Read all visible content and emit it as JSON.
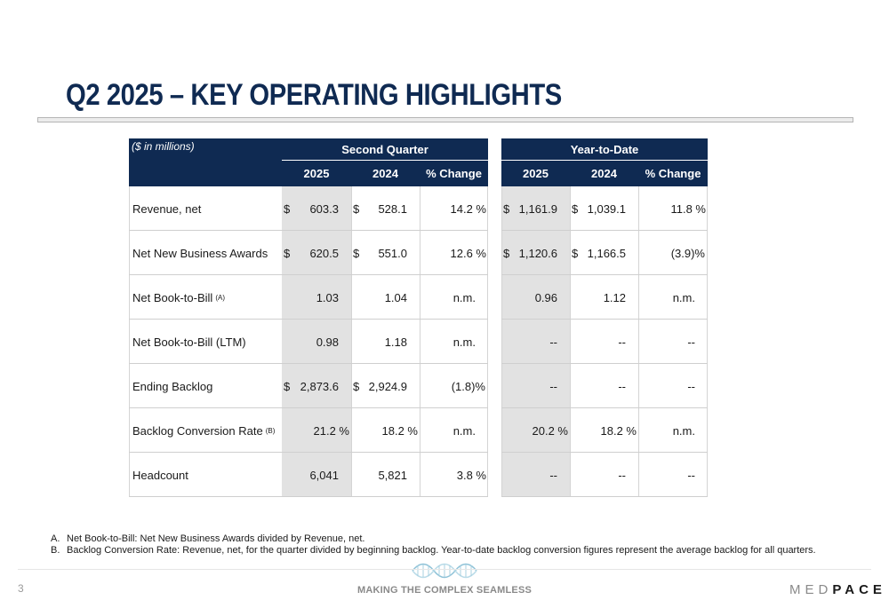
{
  "title": "Q2 2025 – KEY OPERATING HIGHLIGHTS",
  "table": {
    "units_label": "($ in millions)",
    "group_second_quarter": "Second Quarter",
    "group_ytd": "Year-to-Date",
    "col_2025": "2025",
    "col_2024": "2024",
    "col_change": "% Change",
    "rows": [
      {
        "label": "Revenue, net",
        "sup": "",
        "q25_dollar": "$",
        "q25": "603.3",
        "q24_dollar": "$",
        "q24": "528.1",
        "qchg": "14.2 %",
        "y25_dollar": "$",
        "y25": "1,161.9",
        "y24_dollar": "$",
        "y24": "1,039.1",
        "ychg": "11.8 %"
      },
      {
        "label": "Net New Business Awards",
        "sup": "",
        "q25_dollar": "$",
        "q25": "620.5",
        "q24_dollar": "$",
        "q24": "551.0",
        "qchg": "12.6 %",
        "y25_dollar": "$",
        "y25": "1,120.6",
        "y24_dollar": "$",
        "y24": "1,166.5",
        "ychg": "(3.9)%"
      },
      {
        "label": "Net Book-to-Bill",
        "sup": "(A)",
        "q25_dollar": "",
        "q25": "1.03",
        "q24_dollar": "",
        "q24": "1.04",
        "qchg": "n.m.",
        "y25_dollar": "",
        "y25": "0.96",
        "y24_dollar": "",
        "y24": "1.12",
        "ychg": "n.m."
      },
      {
        "label": "Net Book-to-Bill (LTM)",
        "sup": "",
        "q25_dollar": "",
        "q25": "0.98",
        "q24_dollar": "",
        "q24": "1.18",
        "qchg": "n.m.",
        "y25_dollar": "",
        "y25": "--",
        "y24_dollar": "",
        "y24": "--",
        "ychg": "--"
      },
      {
        "label": "Ending Backlog",
        "sup": "",
        "q25_dollar": "$",
        "q25": "2,873.6",
        "q24_dollar": "$",
        "q24": "2,924.9",
        "qchg": "(1.8)%",
        "y25_dollar": "",
        "y25": "--",
        "y24_dollar": "",
        "y24": "--",
        "ychg": "--"
      },
      {
        "label": "Backlog Conversion Rate",
        "sup": "(B)",
        "q25_dollar": "",
        "q25": "21.2 %",
        "q24_dollar": "",
        "q24": "18.2 %",
        "qchg": "n.m.",
        "y25_dollar": "",
        "y25": "20.2 %",
        "y24_dollar": "",
        "y24": "18.2 %",
        "ychg": "n.m."
      },
      {
        "label": "Headcount",
        "sup": "",
        "q25_dollar": "",
        "q25": "6,041",
        "q24_dollar": "",
        "q24": "5,821",
        "qchg": "3.8 %",
        "y25_dollar": "",
        "y25": "--",
        "y24_dollar": "",
        "y24": "--",
        "ychg": "--"
      }
    ]
  },
  "footnotes": [
    {
      "letter": "A.",
      "text": "Net Book-to-Bill: Net New Business Awards divided by Revenue, net."
    },
    {
      "letter": "B.",
      "text": "Backlog Conversion Rate: Revenue, net, for the quarter divided by beginning backlog. Year-to-date backlog conversion figures represent the average backlog for all quarters."
    }
  ],
  "footer": {
    "page_number": "3",
    "tagline": "MAKING THE COMPLEX SEAMLESS",
    "logo_left": "MED",
    "logo_right": "PACE"
  },
  "colors": {
    "navy": "#0f2a52",
    "shade": "#e2e2e2"
  },
  "icons": {
    "dna": "dna-helix-icon"
  }
}
